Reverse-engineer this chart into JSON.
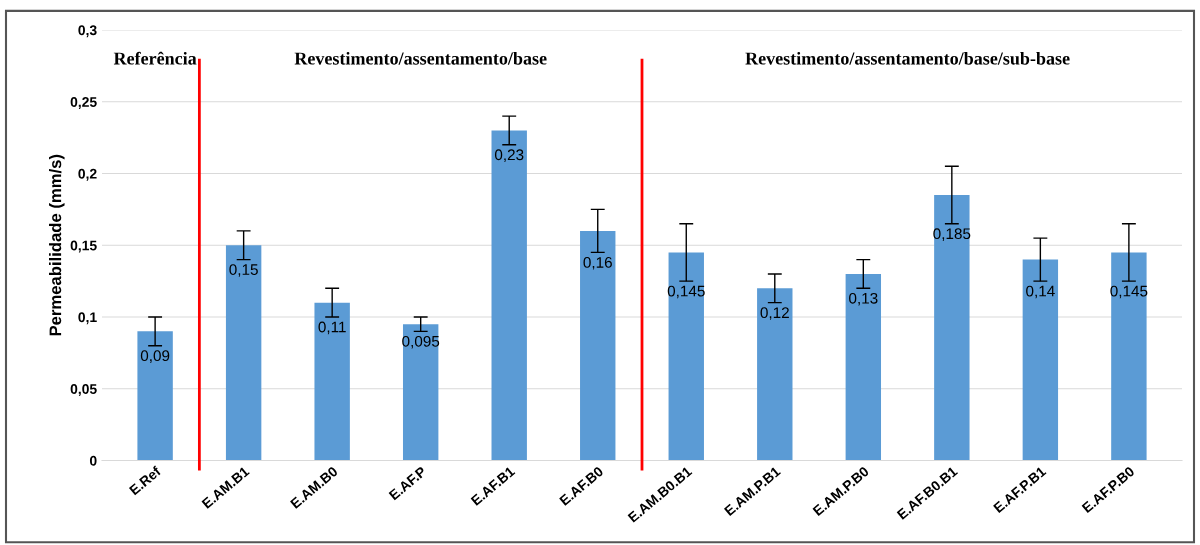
{
  "chart_data": {
    "type": "bar",
    "ylabel": "Permeabilidade (mm/s)",
    "categories": [
      "E.Ref",
      "E.AM.B1",
      "E.AM.B0",
      "E.AF.P",
      "E.AF.B1",
      "E.AF.B0",
      "E.AM.B0.B1",
      "E.AM.P.B1",
      "E.AM.P.B0",
      "E.AF.B0.B1",
      "E.AF.P.B1",
      "E.AF.P.B0"
    ],
    "values": [
      0.09,
      0.15,
      0.11,
      0.095,
      0.23,
      0.16,
      0.145,
      0.12,
      0.13,
      0.185,
      0.14,
      0.145
    ],
    "errors": [
      0.01,
      0.01,
      0.01,
      0.005,
      0.01,
      0.015,
      0.02,
      0.01,
      0.01,
      0.02,
      0.015,
      0.02
    ],
    "color": "#5b9bd5",
    "ylim": [
      0,
      0.3
    ],
    "yticks": [
      {
        "value": 0,
        "label": "0"
      },
      {
        "value": 0.05,
        "label": "0,05"
      },
      {
        "value": 0.1,
        "label": "0,1"
      },
      {
        "value": 0.15,
        "label": "0,15"
      },
      {
        "value": 0.2,
        "label": "0,2"
      },
      {
        "value": 0.25,
        "label": "0,25"
      },
      {
        "value": 0.3,
        "label": "0,3"
      }
    ],
    "value_labels": [
      "0,09",
      "0,15",
      "0,11",
      "0,095",
      "0,23",
      "0,16",
      "0,145",
      "0,12",
      "0,13",
      "0,185",
      "0,14",
      "0,145"
    ],
    "annotations": [
      "Referência",
      "Revestimento/assentamento/base",
      "Revestimento/assentamento/base/sub-base"
    ],
    "grid": "y"
  }
}
